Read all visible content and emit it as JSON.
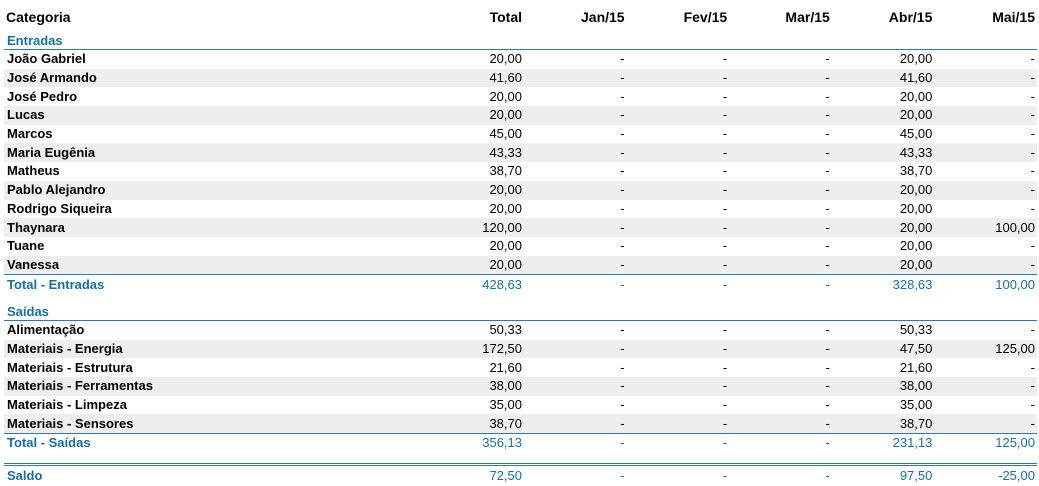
{
  "header": {
    "categoria": "Categoria",
    "total": "Total",
    "months": [
      "Jan/15",
      "Fev/15",
      "Mar/15",
      "Abr/15",
      "Mai/15"
    ]
  },
  "entradas": {
    "title": "Entradas",
    "rows": [
      {
        "name": "João Gabriel",
        "values": [
          "20,00",
          "-",
          "-",
          "-",
          "20,00",
          "-"
        ]
      },
      {
        "name": "José Armando",
        "values": [
          "41,60",
          "-",
          "-",
          "-",
          "41,60",
          "-"
        ]
      },
      {
        "name": "José Pedro",
        "values": [
          "20,00",
          "-",
          "-",
          "-",
          "20,00",
          "-"
        ]
      },
      {
        "name": "Lucas",
        "values": [
          "20,00",
          "-",
          "-",
          "-",
          "20,00",
          "-"
        ]
      },
      {
        "name": "Marcos",
        "values": [
          "45,00",
          "-",
          "-",
          "-",
          "45,00",
          "-"
        ]
      },
      {
        "name": "Maria Eugênia",
        "values": [
          "43,33",
          "-",
          "-",
          "-",
          "43,33",
          "-"
        ]
      },
      {
        "name": "Matheus",
        "values": [
          "38,70",
          "-",
          "-",
          "-",
          "38,70",
          "-"
        ]
      },
      {
        "name": "Pablo Alejandro",
        "values": [
          "20,00",
          "-",
          "-",
          "-",
          "20,00",
          "-"
        ]
      },
      {
        "name": "Rodrigo Siqueira",
        "values": [
          "20,00",
          "-",
          "-",
          "-",
          "20,00",
          "-"
        ]
      },
      {
        "name": "Thaynara",
        "values": [
          "120,00",
          "-",
          "-",
          "-",
          "20,00",
          "100,00"
        ]
      },
      {
        "name": "Tuane",
        "values": [
          "20,00",
          "-",
          "-",
          "-",
          "20,00",
          "-"
        ]
      },
      {
        "name": "Vanessa",
        "values": [
          "20,00",
          "-",
          "-",
          "-",
          "20,00",
          "-"
        ]
      }
    ],
    "total": {
      "name": "Total - Entradas",
      "values": [
        "428,63",
        "-",
        "-",
        "-",
        "328,63",
        "100,00"
      ]
    }
  },
  "saidas": {
    "title": "Saídas",
    "rows": [
      {
        "name": "Alimentação",
        "values": [
          "50,33",
          "-",
          "-",
          "-",
          "50,33",
          "-"
        ]
      },
      {
        "name": "Materiais - Energia",
        "values": [
          "172,50",
          "-",
          "-",
          "-",
          "47,50",
          "125,00"
        ]
      },
      {
        "name": "Materiais - Estrutura",
        "values": [
          "21,60",
          "-",
          "-",
          "-",
          "21,60",
          "-"
        ]
      },
      {
        "name": "Materiais - Ferramentas",
        "values": [
          "38,00",
          "-",
          "-",
          "-",
          "38,00",
          "-"
        ]
      },
      {
        "name": "Materiais - Limpeza",
        "values": [
          "35,00",
          "-",
          "-",
          "-",
          "35,00",
          "-"
        ]
      },
      {
        "name": "Materiais - Sensores",
        "values": [
          "38,70",
          "-",
          "-",
          "-",
          "38,70",
          "-"
        ]
      }
    ],
    "total": {
      "name": "Total - Saídas",
      "values": [
        "356,13",
        "-",
        "-",
        "-",
        "231,13",
        "125,00"
      ]
    }
  },
  "saldo": {
    "name": "Saldo",
    "values": [
      "72,50",
      "-",
      "-",
      "-",
      "97,50",
      "-25,00"
    ]
  },
  "colors": {
    "accent": "#1a6ea0",
    "rule": "#2b7ab5",
    "stripe": "#eeeeee"
  }
}
